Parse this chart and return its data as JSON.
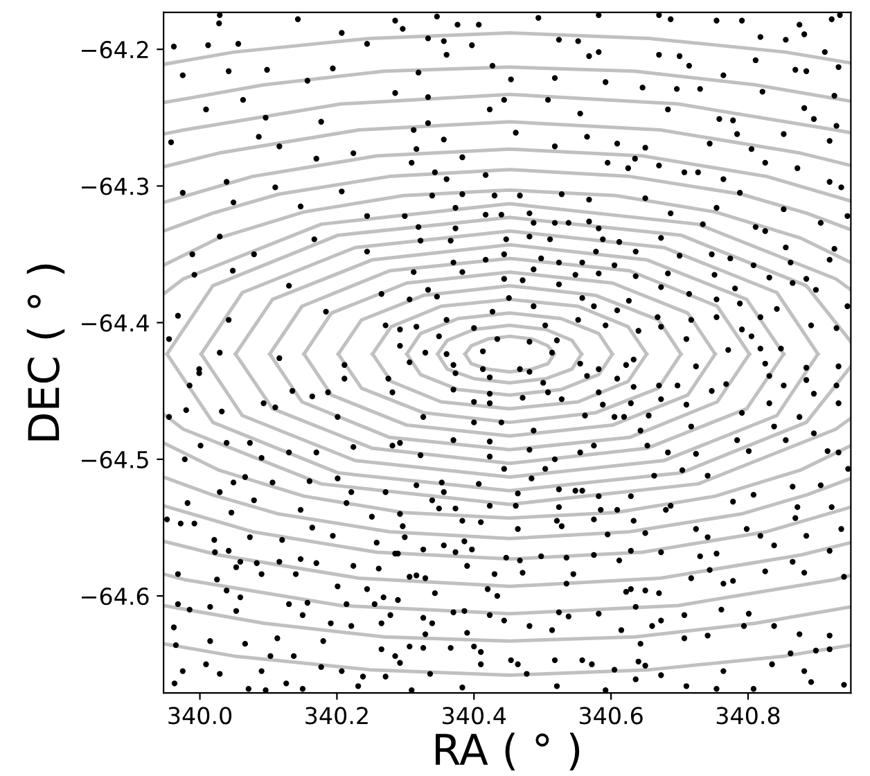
{
  "chart_data": {
    "type": "scatter",
    "xlabel": "RA ( ° )",
    "ylabel": "DEC ( ° )",
    "xlim": [
      339.947,
      340.95
    ],
    "ylim": [
      -64.671,
      -64.173
    ],
    "xticks": [
      {
        "value": 340.0,
        "label": "340.0"
      },
      {
        "value": 340.2,
        "label": "340.2"
      },
      {
        "value": 340.4,
        "label": "340.4"
      },
      {
        "value": 340.6,
        "label": "340.6"
      },
      {
        "value": 340.8,
        "label": "340.8"
      }
    ],
    "yticks": [
      {
        "value": -64.2,
        "label": "−64.2"
      },
      {
        "value": -64.3,
        "label": "−64.3"
      },
      {
        "value": -64.4,
        "label": "−64.4"
      },
      {
        "value": -64.5,
        "label": "−64.5"
      },
      {
        "value": -64.6,
        "label": "−64.6"
      }
    ],
    "grid": false,
    "series": [
      {
        "type": "line",
        "color": "#c0c0c0",
        "x": [
          340.387,
          340.396,
          340.42,
          340.452,
          340.485,
          340.508,
          340.517
        ],
        "values": [
          -64.423,
          -64.417,
          -64.412,
          -64.41,
          -64.412,
          -64.417,
          -64.423
        ]
      },
      {
        "type": "line",
        "color": "#c0c0c0",
        "x": [
          340.387,
          340.396,
          340.42,
          340.452,
          340.485,
          340.508,
          340.517
        ],
        "values": [
          -64.423,
          -64.43,
          -64.434,
          -64.436,
          -64.434,
          -64.43,
          -64.423
        ]
      },
      {
        "type": "line",
        "color": "#c0c0c0",
        "x": [
          340.347,
          340.361,
          340.4,
          340.452,
          340.505,
          340.543,
          340.557
        ],
        "values": [
          -64.423,
          -64.413,
          -64.405,
          -64.402,
          -64.405,
          -64.413,
          -64.423
        ]
      },
      {
        "type": "line",
        "color": "#c0c0c0",
        "x": [
          340.347,
          340.361,
          340.4,
          340.452,
          340.505,
          340.543,
          340.557
        ],
        "values": [
          -64.423,
          -64.434,
          -64.441,
          -64.444,
          -64.441,
          -64.434,
          -64.423
        ]
      },
      {
        "type": "line",
        "color": "#c0c0c0",
        "x": [
          340.302,
          340.322,
          340.377,
          340.452,
          340.527,
          340.582,
          340.602
        ],
        "values": [
          -64.423,
          -64.408,
          -64.397,
          -64.393,
          -64.397,
          -64.408,
          -64.423
        ]
      },
      {
        "type": "line",
        "color": "#c0c0c0",
        "x": [
          340.302,
          340.322,
          340.377,
          340.452,
          340.527,
          340.582,
          340.602
        ],
        "values": [
          -64.423,
          -64.438,
          -64.449,
          -64.453,
          -64.449,
          -64.438,
          -64.423
        ]
      },
      {
        "type": "line",
        "color": "#c0c0c0",
        "x": [
          340.252,
          340.279,
          340.352,
          340.452,
          340.552,
          340.625,
          340.652
        ],
        "values": [
          -64.423,
          -64.403,
          -64.388,
          -64.383,
          -64.388,
          -64.403,
          -64.423
        ]
      },
      {
        "type": "line",
        "color": "#c0c0c0",
        "x": [
          340.252,
          340.279,
          340.352,
          340.452,
          340.552,
          340.625,
          340.652
        ],
        "values": [
          -64.423,
          -64.443,
          -64.458,
          -64.463,
          -64.458,
          -64.443,
          -64.423
        ]
      },
      {
        "type": "line",
        "color": "#c0c0c0",
        "x": [
          340.202,
          340.236,
          340.327,
          340.452,
          340.577,
          340.669,
          340.702
        ],
        "values": [
          -64.423,
          -64.398,
          -64.38,
          -64.373,
          -64.38,
          -64.398,
          -64.423
        ]
      },
      {
        "type": "line",
        "color": "#c0c0c0",
        "x": [
          340.202,
          340.236,
          340.327,
          340.452,
          340.577,
          340.669,
          340.702
        ],
        "values": [
          -64.423,
          -64.448,
          -64.466,
          -64.473,
          -64.466,
          -64.448,
          -64.423
        ]
      },
      {
        "type": "line",
        "color": "#c0c0c0",
        "x": [
          340.152,
          340.192,
          340.302,
          340.452,
          340.602,
          340.712,
          340.752
        ],
        "values": [
          -64.423,
          -64.393,
          -64.371,
          -64.363,
          -64.371,
          -64.393,
          -64.423
        ]
      },
      {
        "type": "line",
        "color": "#c0c0c0",
        "x": [
          340.152,
          340.192,
          340.302,
          340.452,
          340.602,
          340.712,
          340.752
        ],
        "values": [
          -64.423,
          -64.453,
          -64.475,
          -64.483,
          -64.475,
          -64.453,
          -64.423
        ]
      },
      {
        "type": "line",
        "color": "#c0c0c0",
        "x": [
          340.102,
          340.149,
          340.277,
          340.452,
          340.627,
          340.755,
          340.802
        ],
        "values": [
          -64.423,
          -64.388,
          -64.362,
          -64.353,
          -64.362,
          -64.388,
          -64.423
        ]
      },
      {
        "type": "line",
        "color": "#c0c0c0",
        "x": [
          340.102,
          340.149,
          340.277,
          340.452,
          340.627,
          340.755,
          340.802
        ],
        "values": [
          -64.423,
          -64.458,
          -64.484,
          -64.493,
          -64.484,
          -64.458,
          -64.423
        ]
      },
      {
        "type": "line",
        "color": "#c0c0c0",
        "x": [
          340.052,
          340.106,
          340.252,
          340.452,
          340.652,
          340.798,
          340.852
        ],
        "values": [
          -64.423,
          -64.383,
          -64.354,
          -64.343,
          -64.354,
          -64.383,
          -64.423
        ]
      },
      {
        "type": "line",
        "color": "#c0c0c0",
        "x": [
          340.052,
          340.106,
          340.252,
          340.452,
          340.652,
          340.798,
          340.852
        ],
        "values": [
          -64.423,
          -64.463,
          -64.492,
          -64.503,
          -64.492,
          -64.463,
          -64.423
        ]
      },
      {
        "type": "line",
        "color": "#c0c0c0",
        "x": [
          340.002,
          340.062,
          340.227,
          340.452,
          340.677,
          340.842,
          340.902
        ],
        "values": [
          -64.423,
          -64.378,
          -64.345,
          -64.333,
          -64.345,
          -64.378,
          -64.423
        ]
      },
      {
        "type": "line",
        "color": "#c0c0c0",
        "x": [
          340.002,
          340.062,
          340.227,
          340.452,
          340.677,
          340.842,
          340.902
        ],
        "values": [
          -64.423,
          -64.468,
          -64.501,
          -64.513,
          -64.501,
          -64.468,
          -64.423
        ]
      },
      {
        "type": "line",
        "color": "#c0c0c0",
        "x": [
          339.952,
          340.019,
          340.202,
          340.452,
          340.702,
          340.885,
          340.95
        ],
        "values": [
          -64.423,
          -64.373,
          -64.336,
          -64.323,
          -64.336,
          -64.373,
          -64.414
        ]
      },
      {
        "type": "line",
        "color": "#c0c0c0",
        "x": [
          339.952,
          340.019,
          340.202,
          340.452,
          340.702,
          340.885,
          340.95
        ],
        "values": [
          -64.423,
          -64.473,
          -64.51,
          -64.523,
          -64.51,
          -64.473,
          -64.432
        ]
      },
      {
        "type": "line",
        "color": "#c0c0c0",
        "x": [
          339.947,
          339.976,
          340.177,
          340.452,
          340.727,
          340.928,
          340.95
        ],
        "values": [
          -64.379,
          -64.368,
          -64.328,
          -64.313,
          -64.328,
          -64.368,
          -64.376
        ]
      },
      {
        "type": "line",
        "color": "#c0c0c0",
        "x": [
          339.947,
          339.976,
          340.177,
          340.452,
          340.727,
          340.928,
          340.95
        ],
        "values": [
          -64.467,
          -64.478,
          -64.518,
          -64.533,
          -64.518,
          -64.478,
          -64.47
        ]
      },
      {
        "type": "line",
        "color": "#c0c0c0",
        "x": [
          339.947,
          340.028,
          340.152,
          340.297,
          340.452,
          340.607,
          340.752,
          340.876,
          340.95
        ],
        "values": [
          -64.358,
          -64.338,
          -64.319,
          -64.307,
          -64.303,
          -64.307,
          -64.319,
          -64.338,
          -64.356
        ]
      },
      {
        "type": "line",
        "color": "#c0c0c0",
        "x": [
          339.947,
          340.028,
          340.152,
          340.297,
          340.452,
          340.607,
          340.752,
          340.876,
          340.95
        ],
        "values": [
          -64.488,
          -64.508,
          -64.527,
          -64.539,
          -64.543,
          -64.539,
          -64.527,
          -64.508,
          -64.49
        ]
      },
      {
        "type": "line",
        "color": "#c0c0c0",
        "x": [
          339.947,
          340.018,
          340.115,
          340.277,
          340.452,
          340.627,
          340.79,
          340.886,
          340.95
        ],
        "values": [
          -64.333,
          -64.32,
          -64.306,
          -64.293,
          -64.288,
          -64.293,
          -64.306,
          -64.32,
          -64.332
        ]
      },
      {
        "type": "line",
        "color": "#c0c0c0",
        "x": [
          339.947,
          340.018,
          340.115,
          340.277,
          340.452,
          340.627,
          340.79,
          340.886,
          340.95
        ],
        "values": [
          -64.513,
          -64.526,
          -64.54,
          -64.553,
          -64.558,
          -64.553,
          -64.54,
          -64.526,
          -64.514
        ]
      },
      {
        "type": "line",
        "color": "#c0c0c0",
        "x": [
          339.947,
          340.077,
          340.258,
          340.452,
          340.646,
          340.827,
          340.95
        ],
        "values": [
          -64.312,
          -64.293,
          -64.278,
          -64.273,
          -64.278,
          -64.293,
          -64.311
        ]
      },
      {
        "type": "line",
        "color": "#c0c0c0",
        "x": [
          339.947,
          340.077,
          340.258,
          340.452,
          340.646,
          340.827,
          340.95
        ],
        "values": [
          -64.534,
          -64.553,
          -64.568,
          -64.573,
          -64.568,
          -64.553,
          -64.535
        ]
      },
      {
        "type": "line",
        "color": "#c0c0c0",
        "x": [
          339.947,
          340.027,
          340.232,
          340.452,
          340.672,
          340.877,
          340.95
        ],
        "values": [
          -64.286,
          -64.276,
          -64.259,
          -64.253,
          -64.259,
          -64.276,
          -64.285
        ]
      },
      {
        "type": "line",
        "color": "#c0c0c0",
        "x": [
          339.947,
          340.027,
          340.232,
          340.452,
          340.672,
          340.877,
          340.95
        ],
        "values": [
          -64.56,
          -64.57,
          -64.587,
          -64.593,
          -64.587,
          -64.57,
          -64.561
        ]
      },
      {
        "type": "line",
        "color": "#c0c0c0",
        "x": [
          339.947,
          339.977,
          340.206,
          340.452,
          340.698,
          340.927,
          340.95
        ],
        "values": [
          -64.262,
          -64.259,
          -64.24,
          -64.233,
          -64.24,
          -64.259,
          -64.261
        ]
      },
      {
        "type": "line",
        "color": "#c0c0c0",
        "x": [
          339.947,
          339.977,
          340.206,
          340.452,
          340.698,
          340.927,
          340.95
        ],
        "values": [
          -64.584,
          -64.588,
          -64.607,
          -64.613,
          -64.607,
          -64.588,
          -64.585
        ]
      },
      {
        "type": "line",
        "color": "#c0c0c0",
        "x": [
          339.947,
          340.093,
          340.269,
          340.452,
          340.635,
          340.811,
          340.95
        ],
        "values": [
          -64.239,
          -64.226,
          -64.216,
          -64.213,
          -64.216,
          -64.226,
          -64.238
        ]
      },
      {
        "type": "line",
        "color": "#c0c0c0",
        "x": [
          339.947,
          340.093,
          340.269,
          340.452,
          340.635,
          340.811,
          340.95
        ],
        "values": [
          -64.607,
          -64.62,
          -64.63,
          -64.633,
          -64.63,
          -64.62,
          -64.608
        ]
      },
      {
        "type": "line",
        "color": "#c0c0c0",
        "x": [
          339.947,
          340.05,
          340.248,
          340.452,
          340.656,
          340.854,
          340.95
        ],
        "values": [
          -64.211,
          -64.202,
          -64.192,
          -64.188,
          -64.192,
          -64.202,
          -64.21
        ]
      },
      {
        "type": "line",
        "color": "#c0c0c0",
        "x": [
          339.947,
          340.05,
          340.248,
          340.452,
          340.656,
          340.854,
          340.95
        ],
        "values": [
          -64.635,
          -64.644,
          -64.654,
          -64.658,
          -64.654,
          -64.644,
          -64.636
        ]
      },
      {
        "color": "#000000",
        "marker": "circle",
        "x": [
          340.029,
          340.143,
          340.285,
          340.028,
          339.962,
          340.056,
          340.012,
          340.207,
          340.244,
          340.042,
          340.098,
          340.194,
          339.975,
          340.157,
          340.063,
          340.285,
          340.009,
          340.096,
          340.177,
          340.086,
          339.958,
          340.116,
          340.224,
          340.17,
          340.039,
          340.207,
          340.11,
          339.975,
          340.049,
          340.147,
          340.244,
          340.029,
          340.167,
          340.244,
          339.989,
          340.079,
          340.048,
          339.992,
          340.13,
          340.265,
          340.184,
          339.968,
          340.042,
          339.955,
          340.116,
          340.211,
          339.999,
          340.271,
          340.029,
          340.346,
          340.376,
          340.407,
          340.494,
          340.582,
          340.296,
          340.333,
          340.356,
          340.397,
          340.524,
          340.552,
          340.582,
          340.36,
          340.568,
          340.427,
          340.319,
          340.454,
          340.518,
          340.592,
          340.333,
          340.444,
          340.508,
          340.423,
          340.555,
          340.333,
          340.461,
          340.565,
          340.312,
          340.356,
          340.518,
          340.609,
          340.316,
          340.383,
          340.595,
          340.309,
          340.343,
          340.417,
          340.36,
          340.625,
          340.339,
          340.383,
          340.43,
          340.467,
          340.528,
          340.568,
          340.299,
          340.373,
          340.417,
          340.44,
          340.481,
          340.568,
          340.319,
          340.373,
          340.487,
          340.518,
          340.538,
          340.582,
          340.322,
          340.366,
          340.447,
          340.481,
          340.511,
          340.588,
          340.612,
          340.578,
          340.444,
          340.37,
          340.417,
          340.498,
          340.524,
          340.558,
          340.605,
          340.312,
          340.383,
          340.487,
          340.548,
          340.582,
          340.444,
          340.471,
          340.524,
          340.333,
          340.306,
          340.451,
          340.558,
          340.575,
          340.487,
          340.346,
          340.427,
          340.609,
          340.292,
          340.316,
          340.36,
          340.4,
          340.504,
          340.552,
          340.592,
          340.349,
          340.434,
          340.481,
          340.521,
          340.292,
          340.329,
          340.36,
          340.413,
          340.514,
          340.306,
          340.37,
          340.413,
          340.467,
          340.555,
          340.582,
          340.622,
          340.67,
          340.687,
          340.754,
          340.791,
          340.875,
          340.922,
          340.934,
          340.818,
          340.855,
          340.882,
          340.67,
          340.7,
          340.714,
          340.811,
          340.912,
          340.932,
          340.764,
          340.869,
          340.885,
          340.646,
          340.696,
          340.73,
          340.821,
          340.926,
          340.882,
          340.683,
          340.758,
          340.778,
          340.896,
          340.929,
          340.744,
          340.784,
          340.852,
          340.805,
          340.919,
          340.65,
          340.635,
          340.67,
          340.707,
          340.727,
          340.764,
          340.825,
          340.872,
          340.919,
          340.936,
          340.788,
          340.65,
          340.687,
          340.754,
          340.852,
          340.945,
          340.734,
          340.811,
          340.825,
          340.906,
          340.673,
          340.636,
          340.7,
          340.747,
          340.774,
          340.855,
          340.926,
          340.808,
          340.862,
          340.919,
          340.683,
          340.751,
          340.865,
          340.636,
          340.673,
          340.714,
          340.781,
          340.831,
          340.885,
          340.899,
          340.626,
          340.754,
          340.842,
          340.945,
          340.717,
          340.788,
          340.668,
          340.754,
          340.818,
          340.892,
          340.929,
          340.64,
          340.673,
          340.71,
          340.791,
          340.771,
          340.818,
          340.848,
          340.633,
          340.724,
          340.825,
          340.885,
          340.932,
          340.805,
          339.999,
          339.985,
          339.955,
          339.98,
          340.032,
          340.093,
          340.11,
          340.135,
          340.164,
          340.187,
          340.211,
          340.275,
          340.281,
          340.201,
          340.001,
          340.039,
          340.073,
          340.09,
          340.13,
          340.17,
          340.224,
          340.281,
          339.978,
          340.049,
          340.066,
          340.106,
          340.16,
          340.201,
          340.221,
          340.271,
          340.029,
          340.079,
          340.147,
          340.214,
          340.251,
          339.982,
          340.046,
          339.952,
          339.972,
          339.992,
          340.021,
          340.073,
          340.12,
          340.164,
          340.194,
          340.258,
          340.285,
          340.022,
          340.042,
          340.059,
          340.083,
          340.116,
          340.147,
          340.17,
          340.224,
          340.261,
          339.968,
          340.025,
          340.053,
          340.09,
          340.14,
          340.201,
          340.244,
          340.268,
          340.039,
          339.968,
          339.985,
          340.015,
          340.059,
          340.13,
          340.157,
          340.214,
          340.255,
          340.278,
          339.962,
          340.053,
          340.15,
          340.191,
          340.221,
          340.265,
          340.015,
          340.066,
          340.113,
          340.103,
          340.137,
          340.18,
          340.265,
          340.285,
          339.965,
          340.009,
          340.029,
          340.09,
          340.126,
          340.177,
          340.207,
          340.238,
          340.271,
          339.975,
          339.963,
          340.071,
          340.15,
          340.096,
          340.231,
          340.373,
          340.423,
          340.481,
          340.501,
          340.565,
          340.609,
          340.37,
          340.423,
          340.508,
          340.528,
          340.582,
          340.4,
          340.423,
          340.471,
          340.588,
          340.326,
          340.4,
          340.44,
          340.487,
          340.562,
          340.605,
          340.292,
          340.37,
          340.423,
          340.481,
          340.518,
          340.555,
          340.575,
          340.322,
          340.423,
          340.444,
          340.504,
          340.619,
          340.353,
          340.407,
          340.484,
          340.558,
          340.582,
          340.316,
          340.356,
          340.464,
          340.524,
          340.548,
          340.292,
          340.339,
          340.349,
          340.373,
          340.423,
          340.461,
          340.524,
          340.585,
          340.609,
          340.296,
          340.383,
          340.41,
          340.464,
          340.521,
          340.528,
          340.575,
          340.595,
          340.299,
          340.326,
          340.356,
          340.386,
          340.397,
          340.289,
          340.373,
          340.447,
          340.467,
          340.498,
          340.535,
          340.575,
          340.612,
          340.306,
          340.316,
          340.329,
          340.39,
          340.43,
          340.471,
          340.545,
          340.42,
          340.434,
          340.535,
          340.622,
          340.289,
          340.343,
          340.37,
          340.386,
          340.423,
          340.444,
          340.481,
          340.514,
          340.524,
          340.538,
          340.582,
          340.615,
          340.329,
          340.326,
          340.339,
          340.39,
          340.306,
          340.326,
          340.366,
          340.41,
          340.454,
          340.4,
          340.518,
          340.558,
          340.572,
          340.605,
          340.292,
          340.336,
          340.41,
          340.464,
          340.477,
          340.521,
          340.309,
          340.383,
          340.592,
          340.633,
          340.67,
          340.697,
          340.673,
          340.629,
          340.71,
          340.747,
          340.768,
          340.831,
          340.852,
          340.885,
          340.929,
          340.932,
          340.896,
          340.791,
          340.831,
          340.875,
          340.655,
          340.717,
          340.643,
          340.653,
          340.683,
          340.724,
          340.784,
          340.801,
          340.838,
          340.855,
          340.896,
          340.916,
          340.932,
          340.946,
          340.663,
          340.704,
          340.741,
          340.629,
          340.687,
          340.778,
          340.808,
          340.865,
          340.906,
          340.872,
          340.922,
          340.68,
          340.633,
          340.65,
          340.724,
          340.741,
          340.798,
          340.818,
          340.838,
          340.869,
          340.885,
          340.919,
          340.936,
          340.629,
          340.673,
          340.73,
          340.754,
          340.717,
          340.744,
          340.764,
          340.778,
          340.825,
          340.865,
          340.882,
          340.94,
          340.629,
          340.65,
          340.67,
          340.636,
          340.707,
          340.761,
          340.801,
          340.794,
          340.838,
          340.875,
          340.919,
          340.66,
          340.673,
          340.643,
          340.707,
          340.741,
          340.862,
          340.899,
          340.919,
          340.64,
          340.65,
          340.764,
          340.835,
          340.882,
          340.636,
          340.673,
          340.71,
          340.754,
          340.808,
          340.892,
          340.94
        ],
        "values": [
          -64.175,
          -64.178,
          -64.179,
          -64.181,
          -64.198,
          -64.196,
          -64.197,
          -64.188,
          -64.196,
          -64.216,
          -64.215,
          -64.214,
          -64.219,
          -64.223,
          -64.237,
          -64.232,
          -64.244,
          -64.25,
          -64.253,
          -64.264,
          -64.268,
          -64.271,
          -64.276,
          -64.28,
          -64.297,
          -64.304,
          -64.301,
          -64.305,
          -64.312,
          -64.315,
          -64.322,
          -64.337,
          -64.339,
          -64.348,
          -64.35,
          -64.35,
          -64.362,
          -64.365,
          -64.373,
          -64.379,
          -64.392,
          -64.395,
          -64.398,
          -64.412,
          -64.426,
          -64.431,
          -64.434,
          -64.402,
          -64.422,
          -64.176,
          -64.182,
          -64.182,
          -64.177,
          -64.175,
          -64.185,
          -64.192,
          -64.194,
          -64.197,
          -64.193,
          -64.194,
          -64.202,
          -64.204,
          -64.205,
          -64.212,
          -64.217,
          -64.222,
          -64.221,
          -64.224,
          -64.235,
          -64.237,
          -64.237,
          -64.244,
          -64.247,
          -64.254,
          -64.261,
          -64.264,
          -64.259,
          -64.266,
          -64.271,
          -64.269,
          -64.273,
          -64.279,
          -64.283,
          -64.283,
          -64.29,
          -64.292,
          -64.295,
          -64.287,
          -64.307,
          -64.306,
          -64.307,
          -64.307,
          -64.306,
          -64.31,
          -64.322,
          -64.316,
          -64.321,
          -64.321,
          -64.32,
          -64.326,
          -64.33,
          -64.331,
          -64.327,
          -64.327,
          -64.327,
          -64.331,
          -64.34,
          -64.34,
          -64.339,
          -64.337,
          -64.339,
          -64.339,
          -64.341,
          -64.348,
          -64.35,
          -64.356,
          -64.354,
          -64.353,
          -64.356,
          -64.356,
          -64.358,
          -64.363,
          -64.363,
          -64.361,
          -64.365,
          -64.364,
          -64.368,
          -64.369,
          -64.372,
          -64.376,
          -64.383,
          -64.382,
          -64.382,
          -64.388,
          -64.388,
          -64.381,
          -64.392,
          -64.391,
          -64.405,
          -64.403,
          -64.398,
          -64.404,
          -64.402,
          -64.398,
          -64.402,
          -64.41,
          -64.412,
          -64.414,
          -64.413,
          -64.417,
          -64.422,
          -64.423,
          -64.421,
          -64.422,
          -64.429,
          -64.431,
          -64.434,
          -64.434,
          -64.43,
          -64.434,
          -64.431,
          -64.175,
          -64.178,
          -64.179,
          -64.179,
          -64.182,
          -64.178,
          -64.175,
          -64.191,
          -64.193,
          -64.189,
          -64.204,
          -64.205,
          -64.212,
          -64.208,
          -64.202,
          -64.213,
          -64.219,
          -64.215,
          -64.216,
          -64.228,
          -64.229,
          -64.229,
          -64.231,
          -64.234,
          -64.243,
          -64.244,
          -64.251,
          -64.252,
          -64.251,
          -64.256,
          -64.269,
          -64.262,
          -64.262,
          -64.273,
          -64.267,
          -64.272,
          -64.28,
          -64.285,
          -64.29,
          -64.29,
          -64.295,
          -64.283,
          -64.287,
          -64.297,
          -64.301,
          -64.305,
          -64.309,
          -64.32,
          -64.316,
          -64.317,
          -64.322,
          -64.328,
          -64.33,
          -64.333,
          -64.327,
          -64.338,
          -64.348,
          -64.351,
          -64.35,
          -64.353,
          -64.345,
          -64.346,
          -64.358,
          -64.356,
          -64.354,
          -64.364,
          -64.365,
          -64.371,
          -64.366,
          -64.374,
          -64.379,
          -64.375,
          -64.367,
          -64.368,
          -64.376,
          -64.384,
          -64.383,
          -64.39,
          -64.388,
          -64.398,
          -64.386,
          -64.396,
          -64.396,
          -64.396,
          -64.402,
          -64.404,
          -64.406,
          -64.403,
          -64.412,
          -64.405,
          -64.42,
          -64.419,
          -64.419,
          -64.427,
          -64.432,
          -64.43,
          -64.433,
          -64.432,
          -64.41,
          -64.437,
          -64.446,
          -64.469,
          -64.464,
          -64.465,
          -64.459,
          -64.462,
          -64.45,
          -64.454,
          -64.451,
          -64.441,
          -64.441,
          -64.451,
          -64.469,
          -64.49,
          -64.488,
          -64.488,
          -64.499,
          -64.495,
          -64.495,
          -64.491,
          -64.49,
          -64.5,
          -64.517,
          -64.513,
          -64.517,
          -64.516,
          -64.514,
          -64.524,
          -64.524,
          -64.524,
          -64.53,
          -64.537,
          -64.532,
          -64.542,
          -64.532,
          -64.539,
          -64.544,
          -64.547,
          -64.547,
          -64.559,
          -64.557,
          -64.559,
          -64.55,
          -64.556,
          -64.561,
          -64.569,
          -64.568,
          -64.567,
          -64.575,
          -64.576,
          -64.575,
          -64.573,
          -64.576,
          -64.578,
          -64.58,
          -64.584,
          -64.588,
          -64.579,
          -64.584,
          -64.584,
          -64.593,
          -64.595,
          -64.601,
          -64.596,
          -64.606,
          -64.61,
          -64.608,
          -64.601,
          -64.606,
          -64.605,
          -64.606,
          -64.606,
          -64.614,
          -64.623,
          -64.611,
          -64.614,
          -64.62,
          -64.622,
          -64.62,
          -64.633,
          -64.635,
          -64.631,
          -64.644,
          -64.644,
          -64.633,
          -64.639,
          -64.644,
          -64.636,
          -64.65,
          -64.657,
          -64.655,
          -64.664,
          -64.652,
          -64.655,
          -64.659,
          -64.659,
          -64.655,
          -64.664,
          -64.668,
          -64.668,
          -64.669,
          -64.666,
          -64.437,
          -64.44,
          -64.436,
          -64.444,
          -64.439,
          -64.441,
          -64.449,
          -64.452,
          -64.451,
          -64.456,
          -64.451,
          -64.458,
          -64.459,
          -64.455,
          -64.46,
          -64.469,
          -64.473,
          -64.473,
          -64.479,
          -64.468,
          -64.469,
          -64.488,
          -64.486,
          -64.487,
          -64.493,
          -64.5,
          -64.495,
          -64.49,
          -64.497,
          -64.498,
          -64.507,
          -64.507,
          -64.469,
          -64.517,
          -64.518,
          -64.514,
          -64.523,
          -64.527,
          -64.519,
          -64.524,
          -64.525,
          -64.522,
          -64.523,
          -64.54,
          -64.53,
          -64.536,
          -64.536,
          -64.534,
          -64.534,
          -64.535,
          -64.537,
          -64.537,
          -64.549,
          -64.545,
          -64.546,
          -64.551,
          -64.545,
          -64.549,
          -64.544,
          -64.555,
          -64.557,
          -64.566,
          -64.563,
          -64.56,
          -64.566,
          -64.569,
          -64.568,
          -64.572,
          -64.574,
          -64.571,
          -64.572,
          -64.57,
          -64.574,
          -64.586,
          -64.585,
          -64.587,
          -64.578,
          -64.584,
          -64.583,
          -64.584,
          -64.595,
          -64.6,
          -64.591,
          -64.597,
          -64.603,
          -64.598,
          -64.612,
          -64.611,
          -64.614,
          -64.618,
          -64.622,
          -64.625,
          -64.612,
          -64.615,
          -64.613,
          -64.625,
          -64.628,
          -64.616,
          -64.62,
          -64.627,
          -64.637,
          -64.638,
          -64.638,
          -64.641,
          -64.647,
          -64.637,
          -64.647,
          -64.647,
          -64.65,
          -64.654,
          -64.649,
          -64.657,
          -64.65,
          -64.65,
          -64.657,
          -64.666,
          -64.669,
          -64.667,
          -64.669,
          -64.447,
          -64.446,
          -64.446,
          -64.456,
          -64.459,
          -64.46,
          -64.45,
          -64.445,
          -64.439,
          -64.446,
          -64.442,
          -64.446,
          -64.459,
          -64.452,
          -64.466,
          -64.459,
          -64.469,
          -64.468,
          -64.476,
          -64.479,
          -64.49,
          -64.495,
          -64.496,
          -64.486,
          -64.494,
          -64.476,
          -64.486,
          -64.481,
          -64.494,
          -64.495,
          -64.507,
          -64.512,
          -64.508,
          -64.512,
          -64.527,
          -64.534,
          -64.531,
          -64.526,
          -64.52,
          -64.519,
          -64.535,
          -64.535,
          -64.537,
          -64.545,
          -64.554,
          -64.551,
          -64.557,
          -64.551,
          -64.556,
          -64.563,
          -64.543,
          -64.556,
          -64.567,
          -64.551,
          -64.567,
          -64.568,
          -64.571,
          -64.569,
          -64.587,
          -64.581,
          -64.591,
          -64.589,
          -64.582,
          -64.575,
          -64.583,
          -64.586,
          -64.595,
          -64.596,
          -64.598,
          -64.608,
          -64.614,
          -64.61,
          -64.613,
          -64.622,
          -64.622,
          -64.628,
          -64.629,
          -64.622,
          -64.618,
          -64.635,
          -64.631,
          -64.629,
          -64.642,
          -64.64,
          -64.639,
          -64.648,
          -64.651,
          -64.655,
          -64.65,
          -64.655,
          -64.661,
          -64.658,
          -64.666,
          -64.668,
          -64.668,
          -64.663,
          -64.665
        ]
      }
    ]
  }
}
